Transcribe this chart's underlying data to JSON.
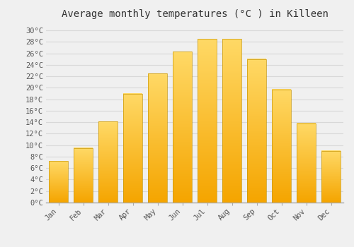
{
  "title": "Average monthly temperatures (°C ) in Killeen",
  "months": [
    "Jan",
    "Feb",
    "Mar",
    "Apr",
    "May",
    "Jun",
    "Jul",
    "Aug",
    "Sep",
    "Oct",
    "Nov",
    "Dec"
  ],
  "values": [
    7.2,
    9.5,
    14.1,
    19.0,
    22.5,
    26.3,
    28.5,
    28.5,
    25.0,
    19.7,
    13.8,
    9.0
  ],
  "ylim": [
    0,
    31
  ],
  "yticks": [
    0,
    2,
    4,
    6,
    8,
    10,
    12,
    14,
    16,
    18,
    20,
    22,
    24,
    26,
    28,
    30
  ],
  "ytick_labels": [
    "0°C",
    "2°C",
    "4°C",
    "6°C",
    "8°C",
    "10°C",
    "12°C",
    "14°C",
    "16°C",
    "18°C",
    "20°C",
    "22°C",
    "24°C",
    "26°C",
    "28°C",
    "30°C"
  ],
  "background_color": "#f0f0f0",
  "grid_color": "#d8d8d8",
  "title_fontsize": 10,
  "tick_fontsize": 7.5,
  "bar_width": 0.75,
  "gradient_bottom": "#F5A500",
  "gradient_top": "#FFD966",
  "bar_edge_color": "#C8980A",
  "bar_edge_width": 0.5
}
